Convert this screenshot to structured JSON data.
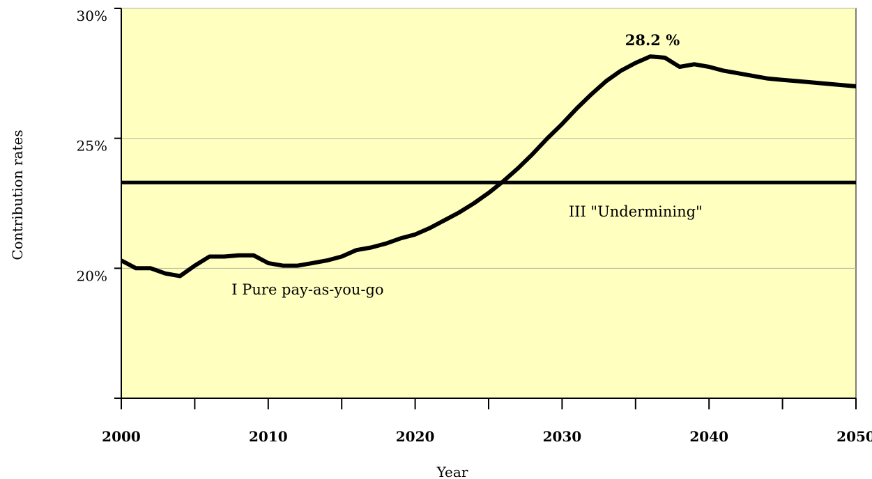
{
  "chart_data": {
    "type": "line",
    "xlabel": "Year",
    "ylabel": "Contribution rates",
    "xlim": [
      2000,
      2050
    ],
    "ylim": [
      15,
      30
    ],
    "xticks": [
      2000,
      2010,
      2020,
      2030,
      2040,
      2050
    ],
    "xtick_labels": [
      "2000",
      "2010",
      "2020",
      "2030",
      "2040",
      "2050"
    ],
    "yticks": [
      20,
      25,
      30
    ],
    "ytick_labels": [
      "20%",
      "25%",
      "30%"
    ],
    "grid": "horizontal",
    "plot_background": "#FFFFC0",
    "series": [
      {
        "color": "#000000",
        "x": [
          2000,
          2001,
          2002,
          2003,
          2004,
          2005,
          2006,
          2007,
          2008,
          2009,
          2010,
          2011,
          2012,
          2013,
          2014,
          2015,
          2016,
          2017,
          2018,
          2019,
          2020,
          2021,
          2022,
          2023,
          2024,
          2025,
          2026,
          2027,
          2028,
          2029,
          2030,
          2031,
          2032,
          2033,
          2034,
          2035,
          2036,
          2037,
          2038,
          2039,
          2040,
          2041,
          2042,
          2043,
          2044,
          2045,
          2046,
          2047,
          2048,
          2049,
          2050
        ],
        "values": [
          20.3,
          20.0,
          20.0,
          19.8,
          19.7,
          20.1,
          20.45,
          20.45,
          20.5,
          20.5,
          20.2,
          20.1,
          20.1,
          20.2,
          20.3,
          20.45,
          20.7,
          20.8,
          20.95,
          21.15,
          21.3,
          21.55,
          21.85,
          22.15,
          22.5,
          22.9,
          23.35,
          23.85,
          24.4,
          25.0,
          25.55,
          26.15,
          26.7,
          27.2,
          27.6,
          27.9,
          28.15,
          28.1,
          27.75,
          27.85,
          27.75,
          27.6,
          27.5,
          27.4,
          27.3,
          27.25,
          27.2,
          27.15,
          27.1,
          27.05,
          27.0
        ]
      }
    ],
    "reference_line": {
      "y": 23.3,
      "color": "#000000"
    },
    "annotations": {
      "peak": {
        "text": "28.2 %",
        "x": 2037,
        "y": 28.2
      },
      "region_one": {
        "text": "I Pure pay-as-you-go",
        "x": 2018,
        "y": 19.2
      },
      "region_three": {
        "text": "III \"Undermining\"",
        "x": 2035,
        "y": 22.2
      }
    }
  }
}
